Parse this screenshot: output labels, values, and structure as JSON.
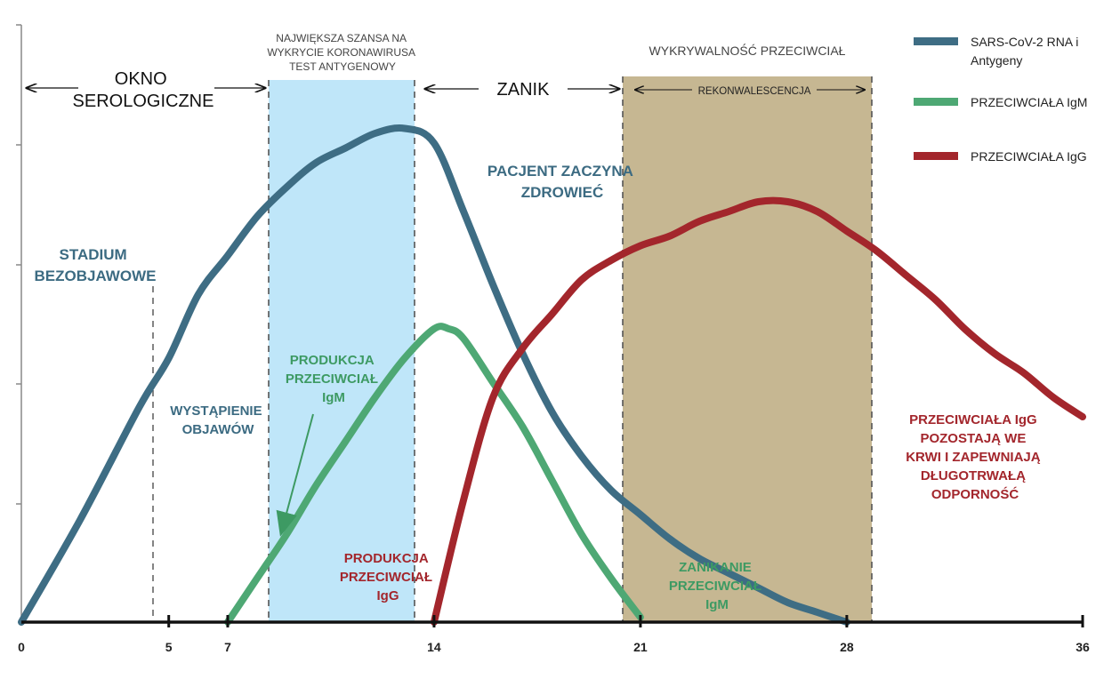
{
  "chart_data": {
    "type": "line",
    "xlim": [
      0,
      36
    ],
    "ylim": [
      0,
      100
    ],
    "x_ticks": [
      0,
      5,
      7,
      14,
      21,
      28,
      36
    ],
    "grid": false,
    "legend_position": "top-right",
    "series": [
      {
        "name": "SARS-CoV-2 RNA i Antygeny",
        "color": "#3e6d84",
        "x": [
          0,
          2,
          4,
          5,
          6,
          7,
          8,
          9,
          10,
          11,
          12,
          13,
          14,
          15,
          16,
          17,
          18,
          19,
          20,
          21,
          22,
          23,
          24,
          25,
          26,
          27,
          28
        ],
        "y": [
          0,
          21,
          44,
          54,
          67,
          75,
          83,
          89,
          94,
          97,
          100,
          101,
          98,
          84,
          69,
          55,
          43,
          34,
          27,
          22,
          17,
          13,
          10,
          7,
          4,
          2,
          0
        ]
      },
      {
        "name": "PRZECIWCIAŁA IgM",
        "color": "#4ea874",
        "x": [
          7,
          8,
          9,
          10,
          11,
          12,
          13,
          14,
          14.5,
          15,
          16,
          17,
          18,
          19,
          20,
          21
        ],
        "y": [
          0,
          9,
          18,
          28,
          37,
          46,
          54,
          60,
          60,
          58,
          49,
          40,
          29,
          18,
          9,
          1
        ]
      },
      {
        "name": "PRZECIWCIAŁA IgG",
        "color": "#a3262c",
        "x": [
          14,
          15,
          16,
          17,
          18,
          19,
          20,
          21,
          22,
          23,
          24,
          25,
          26,
          27,
          28,
          29,
          30,
          31,
          32,
          33,
          34,
          35,
          36
        ],
        "y": [
          0,
          25,
          46,
          56,
          63,
          70,
          74,
          77,
          79,
          82,
          84,
          86,
          86,
          84,
          80,
          76,
          71,
          66,
          60,
          55,
          51,
          46,
          42
        ]
      }
    ],
    "shaded_regions": [
      {
        "x": [
          8.2,
          13.1
        ],
        "color": "#bfe6f9",
        "label": "NAJWIĘKSZA SZANSA NA WYKRYCIE KORONAWIRUSA TEST ANTYGENOWY"
      },
      {
        "x": [
          19.9,
          28
        ],
        "color": "#c6b792",
        "label": "REKONWALESCENCJA"
      }
    ],
    "annotations": {
      "okno": [
        "OKNO",
        "SEROLOGICZNE"
      ],
      "najwieksza": [
        "NAJWIĘKSZA SZANSA NA",
        "WYKRYCIE KORONAWIRUSA",
        "TEST ANTYGENOWY"
      ],
      "zanik": "ZANIK",
      "wykrywalnosc": "WYKRYWALNOŚĆ PRZECIWCIAŁ",
      "rekonwalescencja": "REKONWALESCENCJA",
      "pacjent": [
        "PACJENT ZACZYNA",
        "ZDROWIEĆ"
      ],
      "stadium": [
        "STADIUM",
        "BEZOBJAWOWE"
      ],
      "wystapienie": [
        "WYSTĄPIENIE",
        "OBJAWÓW"
      ],
      "produkcja_igm": [
        "PRODUKCJA",
        "PRZECIWCIAŁ",
        "IgM"
      ],
      "produkcja_igg": [
        "PRODUKCJA",
        "PRZECIWCIAŁ",
        "IgG"
      ],
      "zanikanie": [
        "ZANIKANIE",
        "PRZECIWCIAŁ",
        "IgM"
      ],
      "pozostaja": [
        "PRZECIWCIAŁA IgG",
        "POZOSTAJĄ WE",
        "KRWI I ZAPEWNIAJĄ",
        "DŁUGOTRWAŁĄ",
        "ODPORNOŚĆ"
      ]
    },
    "legend": [
      {
        "label": [
          "SARS-CoV-2 RNA i",
          "Antygeny"
        ],
        "color": "#3e6d84"
      },
      {
        "label": [
          "PRZECIWCIAŁA IgM"
        ],
        "color": "#4ea874"
      },
      {
        "label": [
          "PRZECIWCIAŁA IgG"
        ],
        "color": "#a3262c"
      }
    ]
  }
}
